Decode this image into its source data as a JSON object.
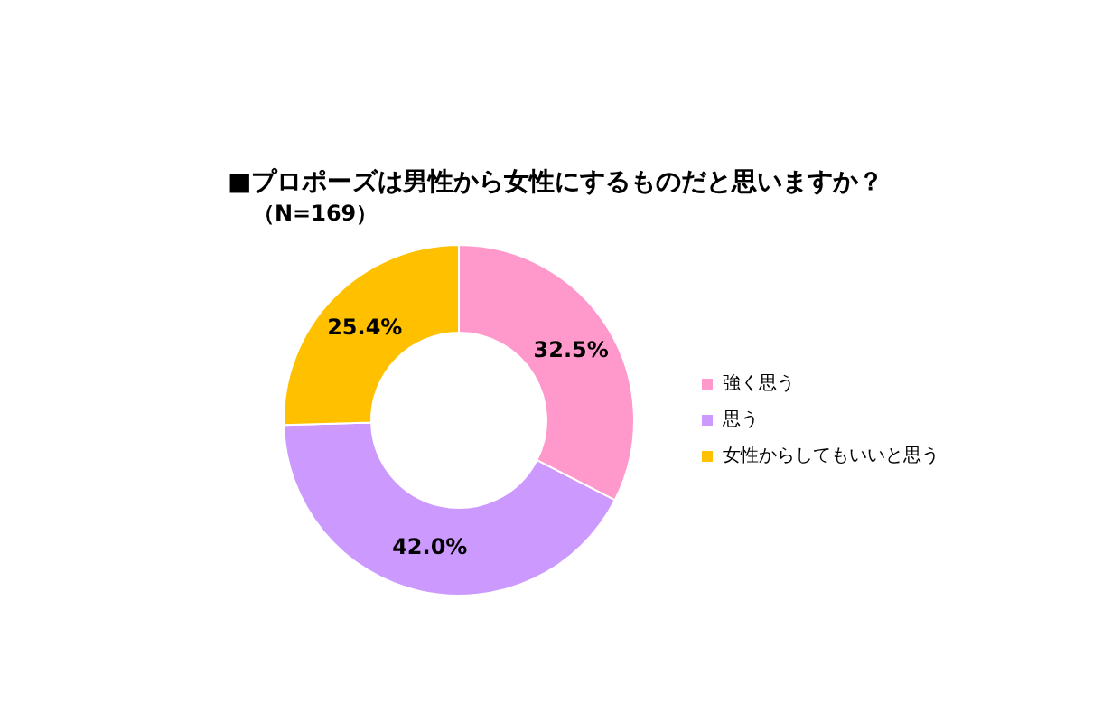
{
  "chart_data": {
    "type": "donut",
    "title": "■プロポーズは男性から女性にするものだと思いますか？",
    "subtitle": "（N=169）",
    "categories": [
      "強く思う",
      "思う",
      "女性からしてもいいと思う"
    ],
    "values": [
      32.5,
      42.0,
      25.4
    ],
    "colors": [
      "#ff99cc",
      "#cc99ff",
      "#ffc000"
    ],
    "value_labels": [
      "32.5%",
      "42.0%",
      "25.4%"
    ],
    "legend": "right"
  }
}
